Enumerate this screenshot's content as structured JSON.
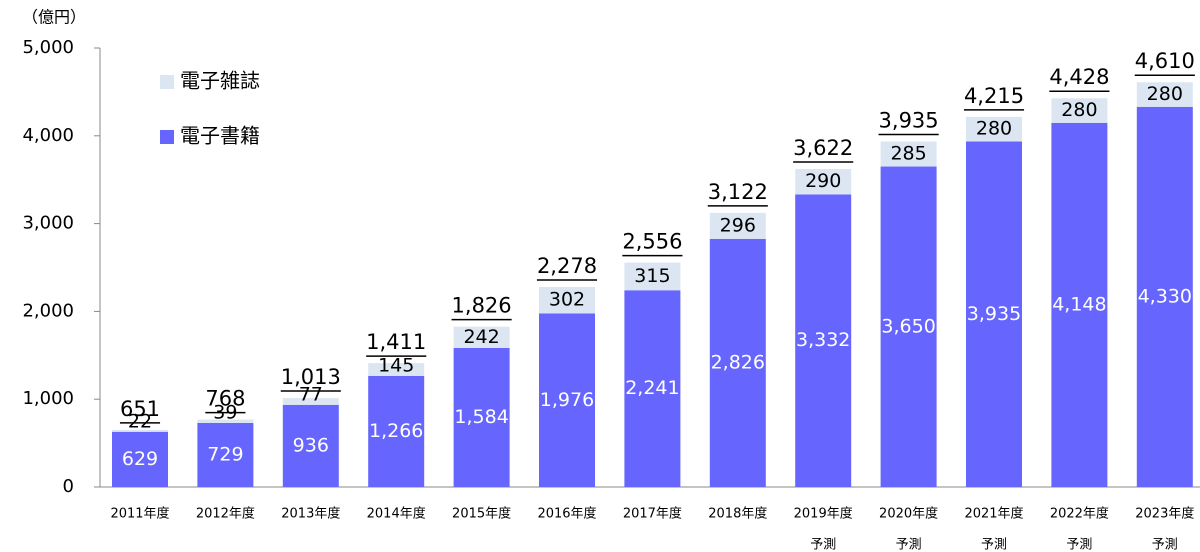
{
  "chart_data": {
    "type": "stacked_bar",
    "unit_label": "（億円）",
    "categories": [
      "2011年度",
      "2012年度",
      "2013年度",
      "2014年度",
      "2015年度",
      "2016年度",
      "2017年度",
      "2018年度",
      "2019年度",
      "2020年度",
      "2021年度",
      "2022年度",
      "2023年度"
    ],
    "category_notes": [
      null,
      null,
      null,
      null,
      null,
      null,
      null,
      null,
      "予測",
      "予測",
      "予測",
      "予測",
      "予測"
    ],
    "series": [
      {
        "name": "電子書籍",
        "color": "#6666ff",
        "label_color": "#ffffff",
        "values": [
          629,
          729,
          936,
          1266,
          1584,
          1976,
          2241,
          2826,
          3332,
          3650,
          3935,
          4148,
          4330
        ],
        "value_labels": [
          "629",
          "729",
          "936",
          "1,266",
          "1,584",
          "1,976",
          "2,241",
          "2,826",
          "3,332",
          "3,650",
          "3,935",
          "4,148",
          "4,330"
        ]
      },
      {
        "name": "電子雑誌",
        "color": "#dce6f2",
        "label_color": "#000000",
        "values": [
          22,
          39,
          77,
          145,
          242,
          302,
          315,
          296,
          290,
          285,
          280,
          280,
          280
        ]
      }
    ],
    "totals": [
      651,
      768,
      1013,
      1411,
      1826,
      2278,
      2556,
      3122,
      3622,
      3935,
      4215,
      4428,
      4610
    ],
    "total_labels": [
      "651",
      "768",
      "1,013",
      "1,411",
      "1,826",
      "2,278",
      "2,556",
      "3,122",
      "3,622",
      "3,935",
      "4,215",
      "4,428",
      "4,610"
    ],
    "ylim": [
      0,
      5000
    ],
    "yticks": [
      0,
      {
        "value": 1000,
        "label": "1,000"
      },
      {
        "value": 2000,
        "label": "2,000"
      },
      {
        "value": 3000,
        "label": "3,000"
      },
      {
        "value": 4000,
        "label": "4,000"
      },
      {
        "value": 5000,
        "label": "5,000"
      }
    ],
    "legend": "top-left"
  }
}
